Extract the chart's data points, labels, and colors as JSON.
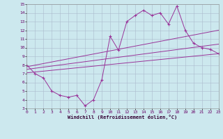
{
  "xlabel": "Windchill (Refroidissement éolien,°C)",
  "xlim": [
    0,
    23
  ],
  "ylim": [
    3,
    15
  ],
  "xticks": [
    0,
    1,
    2,
    3,
    4,
    5,
    6,
    7,
    8,
    9,
    10,
    11,
    12,
    13,
    14,
    15,
    16,
    17,
    18,
    19,
    20,
    21,
    22,
    23
  ],
  "yticks": [
    3,
    4,
    5,
    6,
    7,
    8,
    9,
    10,
    11,
    12,
    13,
    14,
    15
  ],
  "bg_color": "#cce8ee",
  "line_color": "#993399",
  "grid_color": "#aabbcc",
  "line1_x": [
    0,
    1,
    2,
    3,
    4,
    5,
    6,
    7,
    8,
    9,
    10,
    11,
    12,
    13,
    14,
    15,
    16,
    17,
    18,
    19,
    20,
    21,
    22,
    23
  ],
  "line1_y": [
    8.0,
    7.0,
    6.5,
    5.0,
    4.5,
    4.3,
    4.5,
    3.3,
    4.0,
    6.3,
    11.3,
    9.7,
    13.0,
    13.7,
    14.3,
    13.7,
    14.0,
    12.7,
    14.8,
    12.0,
    10.5,
    10.0,
    9.8,
    9.3
  ],
  "line2_x": [
    0,
    23
  ],
  "line2_y": [
    7.8,
    12.0
  ],
  "line3_x": [
    0,
    23
  ],
  "line3_y": [
    7.5,
    10.4
  ],
  "line4_x": [
    0,
    23
  ],
  "line4_y": [
    7.1,
    9.3
  ]
}
